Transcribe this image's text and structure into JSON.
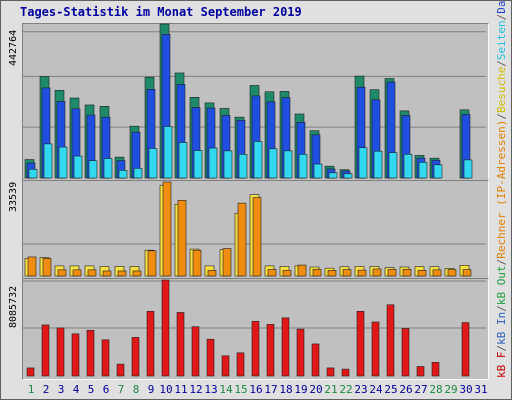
{
  "title": "Tages-Statistik im Monat September 2019",
  "panels": {
    "top_max": "442764",
    "mid_max": "33539",
    "bot_max": "8085732"
  },
  "legend": [
    {
      "text": "kB F",
      "color": "#cc0000"
    },
    {
      "text": "/",
      "color": "#606060"
    },
    {
      "text": "kB In",
      "color": "#3060c0"
    },
    {
      "text": "/",
      "color": "#606060"
    },
    {
      "text": "kB Out",
      "color": "#20a040"
    },
    {
      "text": "/",
      "color": "#606060"
    },
    {
      "text": "Rechner (IP-Adressen)",
      "color": "#e08000"
    },
    {
      "text": "/",
      "color": "#606060"
    },
    {
      "text": "Besuche",
      "color": "#d0c000"
    },
    {
      "text": "/",
      "color": "#606060"
    },
    {
      "text": "Seiten",
      "color": "#20c0e0"
    },
    {
      "text": "/",
      "color": "#606060"
    },
    {
      "text": "Dateien",
      "color": "#2040d0"
    },
    {
      "text": "/",
      "color": "#606060"
    },
    {
      "text": "Anfragen",
      "color": "#108050"
    }
  ],
  "colors": {
    "anfragen": "#1e8a6a",
    "dateien": "#1f4fe0",
    "seiten": "#30d8f0",
    "besuche": "#f8e040",
    "rechner": "#f08c10",
    "kbf": "#e01818",
    "weekend": "#1a8a40",
    "weekday": "#0000a0"
  },
  "chart_data": {
    "type": "bar",
    "categories": [
      "1",
      "2",
      "3",
      "4",
      "5",
      "6",
      "7",
      "8",
      "9",
      "10",
      "11",
      "12",
      "13",
      "14",
      "15",
      "16",
      "17",
      "18",
      "19",
      "20",
      "21",
      "22",
      "23",
      "24",
      "25",
      "26",
      "27",
      "28",
      "29",
      "30",
      "31"
    ],
    "weekend_days": [
      "1",
      "7",
      "8",
      "14",
      "15",
      "21",
      "22",
      "28",
      "29"
    ],
    "series": [
      {
        "name": "Anfragen",
        "panel": "top",
        "ylim": [
          0,
          442764
        ],
        "values": [
          53000,
          292000,
          252000,
          230000,
          210000,
          206000,
          60000,
          149000,
          290000,
          442764,
          302000,
          232000,
          216000,
          200000,
          175000,
          266000,
          248000,
          249000,
          184000,
          136000,
          34000,
          24000,
          293000,
          254000,
          286000,
          193000,
          65000,
          57000,
          0,
          196000,
          0
        ]
      },
      {
        "name": "Dateien",
        "panel": "top",
        "ylim": [
          0,
          442764
        ],
        "values": [
          43000,
          259000,
          220000,
          199000,
          181000,
          175000,
          50000,
          132000,
          255000,
          413000,
          269000,
          203000,
          201000,
          180000,
          166000,
          236000,
          219000,
          231000,
          160000,
          124000,
          26000,
          20000,
          261000,
          225000,
          276000,
          180000,
          57000,
          51000,
          0,
          183000,
          0
        ]
      },
      {
        "name": "Seiten",
        "panel": "top",
        "ylim": [
          0,
          442764
        ],
        "values": [
          25000,
          98000,
          89000,
          63000,
          50000,
          56000,
          22000,
          28000,
          85000,
          148000,
          102000,
          79000,
          86000,
          78000,
          68000,
          105000,
          84000,
          78000,
          68000,
          40000,
          15000,
          12000,
          87000,
          77000,
          73000,
          68000,
          45000,
          38000,
          0,
          52000,
          0
        ]
      },
      {
        "name": "Besuche",
        "panel": "mid",
        "ylim": [
          0,
          33539
        ],
        "values": [
          6300,
          6600,
          3600,
          3600,
          3600,
          3400,
          3400,
          3400,
          9200,
          32400,
          25600,
          9600,
          3600,
          9400,
          22400,
          29000,
          3600,
          3400,
          3600,
          3200,
          2800,
          3300,
          3400,
          3400,
          3000,
          3200,
          3400,
          3300,
          2700,
          3800,
          0
        ]
      },
      {
        "name": "Rechner",
        "panel": "mid",
        "ylim": [
          0,
          33539
        ],
        "values": [
          6800,
          6300,
          2200,
          2200,
          2200,
          1800,
          1800,
          1800,
          9000,
          33539,
          27000,
          9200,
          2000,
          9800,
          26000,
          28000,
          2300,
          2000,
          3900,
          2400,
          2000,
          2300,
          2100,
          2500,
          2400,
          2400,
          2000,
          2200,
          2300,
          2300,
          0
        ]
      },
      {
        "name": "kB F",
        "panel": "bot",
        "ylim": [
          0,
          8085732
        ],
        "values": [
          680000,
          4300000,
          4050000,
          3550000,
          3850000,
          3050000,
          1000000,
          3250000,
          5450000,
          8085732,
          5350000,
          4150000,
          3100000,
          1700000,
          1950000,
          4600000,
          4350000,
          4900000,
          3950000,
          2700000,
          680000,
          580000,
          5450000,
          4550000,
          6000000,
          4000000,
          800000,
          1150000,
          0,
          4500000,
          0
        ]
      }
    ]
  }
}
